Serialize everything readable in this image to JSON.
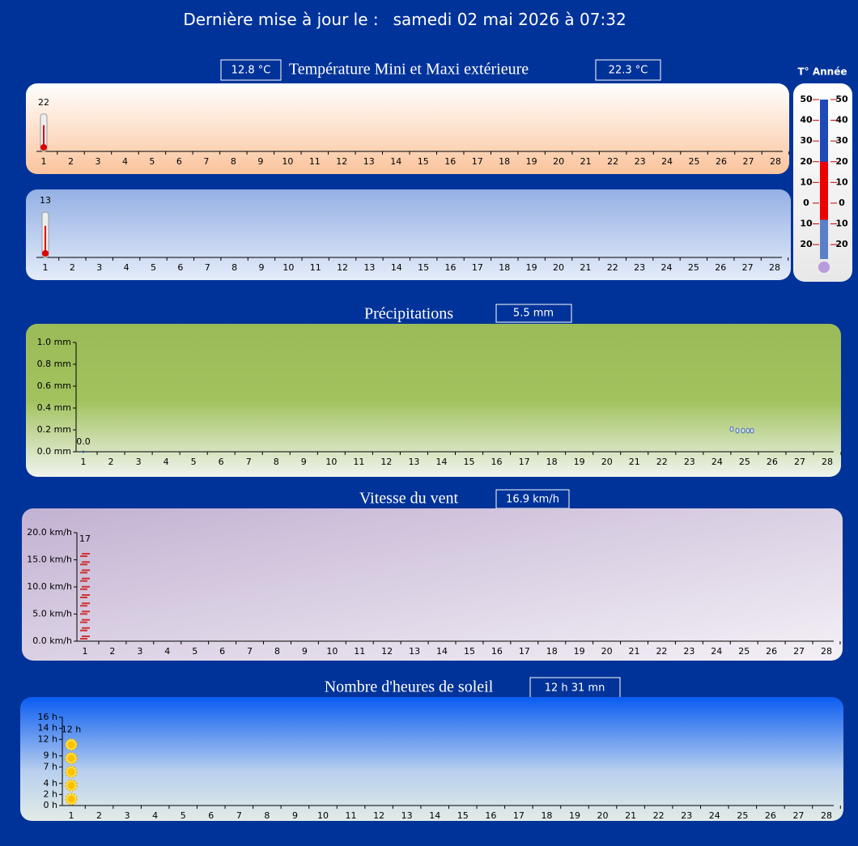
{
  "header": {
    "label": "Dernière mise à jour le :",
    "date": "samedi 02 mai 2026 à 07:32"
  },
  "days": [
    1,
    2,
    3,
    4,
    5,
    6,
    7,
    8,
    9,
    10,
    11,
    12,
    13,
    14,
    15,
    16,
    17,
    18,
    19,
    20,
    21,
    22,
    23,
    24,
    25,
    26,
    27,
    28
  ],
  "temperature": {
    "title": "Température Mini et Maxi extérieure",
    "min_box": "12.8 °C",
    "max_box": "22.3 °C",
    "max": {
      "values": [
        22
      ]
    },
    "min": {
      "values": [
        13
      ]
    }
  },
  "year_thermometer": {
    "title": "T° Année",
    "ylim": [
      -27,
      50
    ],
    "yticks": [
      50,
      40,
      30,
      20,
      10,
      0,
      {
        "value": -10,
        "label": "10"
      },
      {
        "value": -20,
        "label": "20"
      }
    ],
    "low": -8,
    "high": 20
  },
  "precipitation": {
    "title": "Précipitations",
    "total": "5.5 mm",
    "ylim": [
      0,
      1
    ],
    "yticks": [
      {
        "value": 0,
        "label": "0.0 mm"
      },
      {
        "value": 0.2,
        "label": "0.2 mm"
      },
      {
        "value": 0.4,
        "label": "0.4 mm"
      },
      {
        "value": 0.6,
        "label": "0.6 mm"
      },
      {
        "value": 0.8,
        "label": "0.8 mm"
      },
      {
        "value": 1,
        "label": "1.0 mm"
      }
    ],
    "values": [
      0
    ],
    "value_labels": [
      "0.0"
    ]
  },
  "wind": {
    "title": "Vitesse du vent",
    "max": "16.9 km/h",
    "ylim": [
      0,
      20
    ],
    "yticks": [
      {
        "value": 0,
        "label": "0.0 km/h"
      },
      {
        "value": 5,
        "label": "5.0 km/h"
      },
      {
        "value": 10,
        "label": "10.0 km/h"
      },
      {
        "value": 15,
        "label": "15.0 km/h"
      },
      {
        "value": 20,
        "label": "20.0 km/h"
      }
    ],
    "values": [
      17
    ]
  },
  "sunshine": {
    "title": "Nombre d'heures de soleil",
    "total": "12 h 31 mn",
    "ylim": [
      0,
      16
    ],
    "yticks": [
      {
        "value": 0,
        "label": "0 h"
      },
      {
        "value": 2,
        "label": "2 h"
      },
      {
        "value": 4,
        "label": "4 h"
      },
      {
        "value": 7,
        "label": "7 h"
      },
      {
        "value": 9,
        "label": "9 h"
      },
      {
        "value": 12,
        "label": "12 h"
      },
      {
        "value": 14,
        "label": "14 h"
      },
      {
        "value": 16,
        "label": "16 h"
      }
    ],
    "values": [
      12
    ],
    "value_labels": [
      "12 h"
    ]
  }
}
